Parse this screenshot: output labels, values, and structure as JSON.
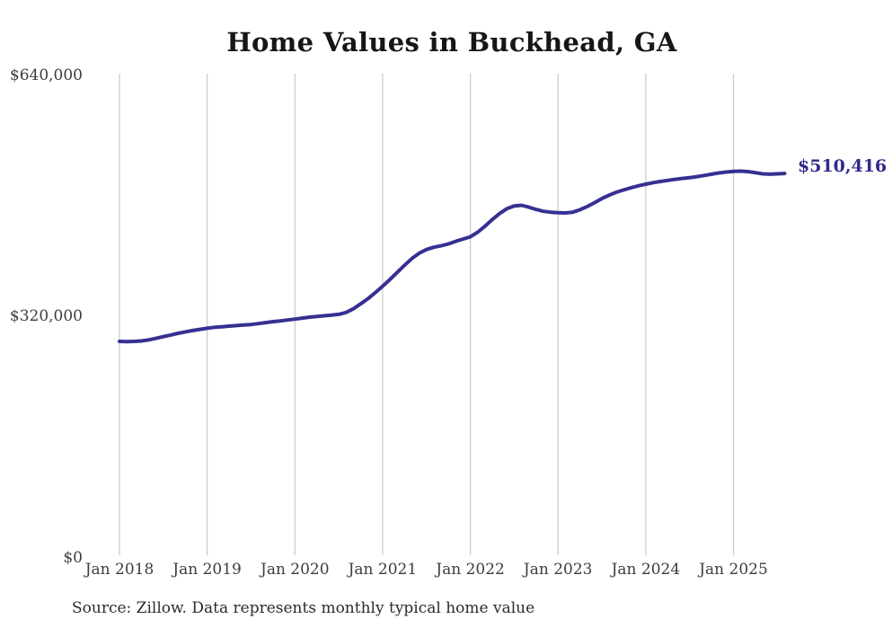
{
  "chart_data": {
    "type": "line",
    "title": "Home Values in Buckhead, GA",
    "xlabel": "",
    "ylabel": "",
    "ylim": [
      0,
      640000
    ],
    "grid": "vertical-only",
    "line_color": "#363093",
    "gridline_color": "#cdcdcd",
    "end_label": "$510,416",
    "latest_value": 510416,
    "source": "Source: Zillow. Data represents monthly typical home value",
    "y_tick_values": [
      0,
      320000,
      640000
    ],
    "y_tick_labels": [
      "$0",
      "$320,000",
      "$640,000"
    ],
    "x_tick_labels": [
      "Jan 2018",
      "Jan 2019",
      "Jan 2020",
      "Jan 2021",
      "Jan 2022",
      "Jan 2023",
      "Jan 2024",
      "Jan 2025"
    ],
    "x_tick_month_index": [
      0,
      12,
      24,
      36,
      48,
      60,
      72,
      84
    ],
    "x": [
      "2018-01",
      "2018-02",
      "2018-03",
      "2018-04",
      "2018-05",
      "2018-06",
      "2018-07",
      "2018-08",
      "2018-09",
      "2018-10",
      "2018-11",
      "2018-12",
      "2019-01",
      "2019-02",
      "2019-03",
      "2019-04",
      "2019-05",
      "2019-06",
      "2019-07",
      "2019-08",
      "2019-09",
      "2019-10",
      "2019-11",
      "2019-12",
      "2020-01",
      "2020-02",
      "2020-03",
      "2020-04",
      "2020-05",
      "2020-06",
      "2020-07",
      "2020-08",
      "2020-09",
      "2020-10",
      "2020-11",
      "2020-12",
      "2021-01",
      "2021-02",
      "2021-03",
      "2021-04",
      "2021-05",
      "2021-06",
      "2021-07",
      "2021-08",
      "2021-09",
      "2021-10",
      "2021-11",
      "2021-12",
      "2022-01",
      "2022-02",
      "2022-03",
      "2022-04",
      "2022-05",
      "2022-06",
      "2022-07",
      "2022-08",
      "2022-09",
      "2022-10",
      "2022-11",
      "2022-12",
      "2023-01",
      "2023-02",
      "2023-03",
      "2023-04",
      "2023-05",
      "2023-06",
      "2023-07",
      "2023-08",
      "2023-09",
      "2023-10",
      "2023-11",
      "2023-12",
      "2024-01",
      "2024-02",
      "2024-03",
      "2024-04",
      "2024-05",
      "2024-06",
      "2024-07",
      "2024-08",
      "2024-09",
      "2024-10",
      "2024-11",
      "2024-12",
      "2025-01",
      "2025-02",
      "2025-03",
      "2025-04",
      "2025-05",
      "2025-06",
      "2025-07",
      "2025-08"
    ],
    "series": [
      {
        "name": "Typical home value",
        "values": [
          286500,
          286200,
          286400,
          287000,
          288500,
          290500,
          292800,
          295000,
          297200,
          299200,
          301000,
          302500,
          304000,
          305200,
          306000,
          306800,
          307500,
          308200,
          309000,
          310200,
          311500,
          312800,
          313800,
          315000,
          316200,
          317500,
          318800,
          319800,
          320600,
          321400,
          322500,
          325000,
          330000,
          336500,
          343500,
          351500,
          360000,
          369000,
          378500,
          388000,
          397000,
          404000,
          409000,
          412000,
          414000,
          416500,
          420000,
          423000,
          426000,
          432000,
          440000,
          449000,
          457000,
          463500,
          467000,
          468000,
          465500,
          462500,
          460000,
          458800,
          458200,
          457800,
          458800,
          462000,
          466500,
          471500,
          477000,
          481500,
          485500,
          488500,
          491500,
          494000,
          496200,
          498200,
          499800,
          501200,
          502600,
          503800,
          504800,
          506200,
          507800,
          509500,
          511200,
          512400,
          513200,
          513500,
          513000,
          511500,
          510000,
          509500,
          510000,
          510416
        ]
      }
    ]
  }
}
